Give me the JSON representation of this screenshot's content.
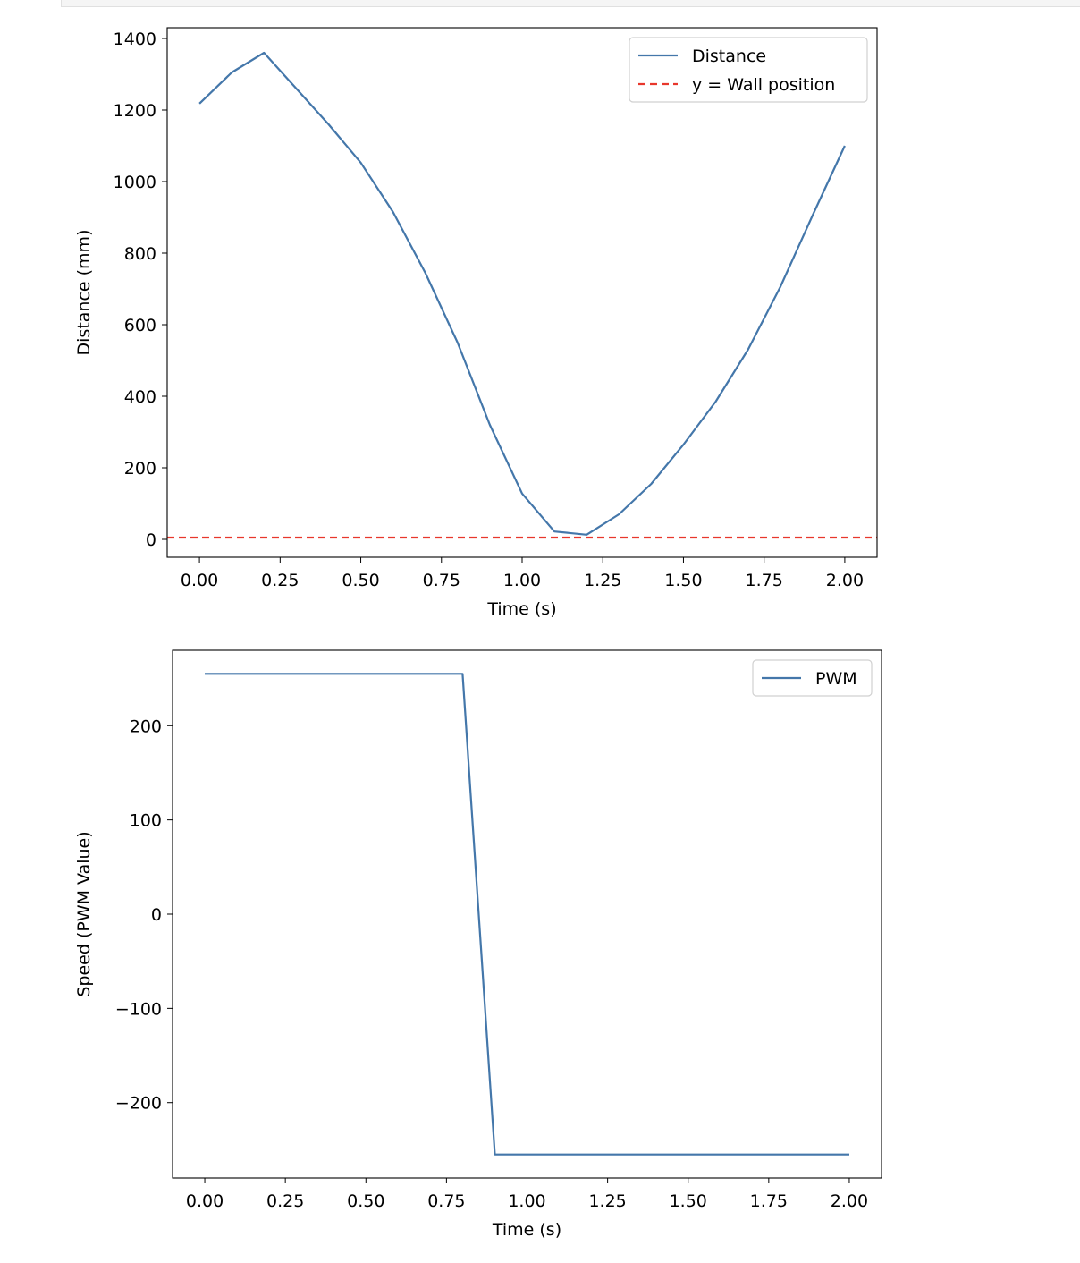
{
  "chart_data": [
    {
      "type": "line",
      "xlabel": "Time (s)",
      "ylabel": "Distance (mm)",
      "xlim": [
        -0.1,
        2.1
      ],
      "ylim": [
        -50,
        1430
      ],
      "xticks": [
        "0.00",
        "0.25",
        "0.50",
        "0.75",
        "1.00",
        "1.25",
        "1.50",
        "1.75",
        "2.00"
      ],
      "yticks": [
        "0",
        "200",
        "400",
        "600",
        "800",
        "1000",
        "1200",
        "1400"
      ],
      "series": [
        {
          "name": "Distance",
          "color": "#4477aa",
          "style": "solid",
          "x": [
            0.0,
            0.1,
            0.2,
            0.3,
            0.4,
            0.5,
            0.6,
            0.7,
            0.8,
            0.9,
            1.0,
            1.1,
            1.2,
            1.3,
            1.4,
            1.5,
            1.6,
            1.7,
            1.8,
            1.9,
            2.0
          ],
          "y": [
            1218,
            1305,
            1360,
            1260,
            1160,
            1053,
            915,
            745,
            550,
            320,
            128,
            22,
            13,
            70,
            155,
            265,
            385,
            530,
            705,
            905,
            1100
          ]
        },
        {
          "name": "y = Wall position",
          "color": "#e8372c",
          "style": "dashed",
          "x": [
            -0.1,
            2.1
          ],
          "y": [
            5,
            5
          ]
        }
      ],
      "legend": "top-right"
    },
    {
      "type": "line",
      "xlabel": "Time (s)",
      "ylabel": "Speed (PWM Value)",
      "xlim": [
        -0.1,
        2.1
      ],
      "ylim": [
        -280,
        280
      ],
      "xticks": [
        "0.00",
        "0.25",
        "0.50",
        "0.75",
        "1.00",
        "1.25",
        "1.50",
        "1.75",
        "2.00"
      ],
      "yticks": [
        "−200",
        "−100",
        "0",
        "100",
        "200"
      ],
      "series": [
        {
          "name": "PWM",
          "color": "#4477aa",
          "style": "solid",
          "x": [
            0.0,
            0.8,
            0.9,
            2.0
          ],
          "y": [
            255,
            255,
            -255,
            -255
          ]
        }
      ],
      "legend": "top-right"
    }
  ]
}
